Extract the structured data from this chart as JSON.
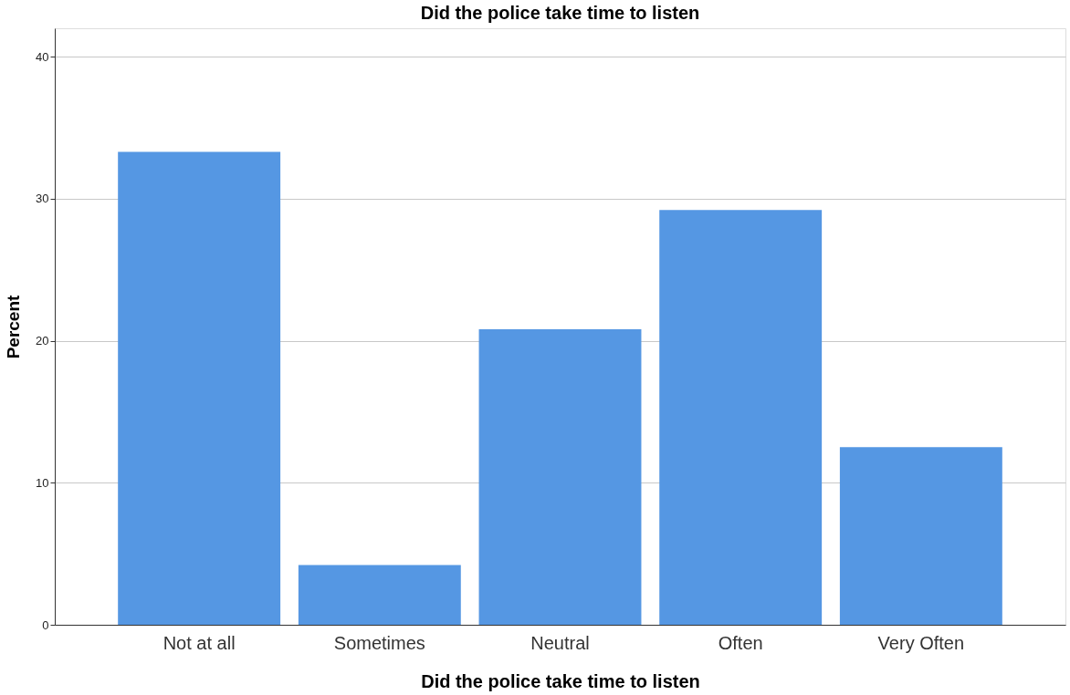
{
  "chart_data": {
    "type": "bar",
    "title": "Did the police take time to listen",
    "xlabel": "Did the police take time to listen",
    "ylabel": "Percent",
    "categories": [
      "Not at all",
      "Sometimes",
      "Neutral",
      "Often",
      "Very Often"
    ],
    "values": [
      33.3,
      4.2,
      20.8,
      29.2,
      12.5
    ],
    "color": "#5597e3",
    "ylim": [
      0,
      42
    ],
    "yticks": [
      0,
      10,
      20,
      30,
      40
    ],
    "grid": "y"
  }
}
